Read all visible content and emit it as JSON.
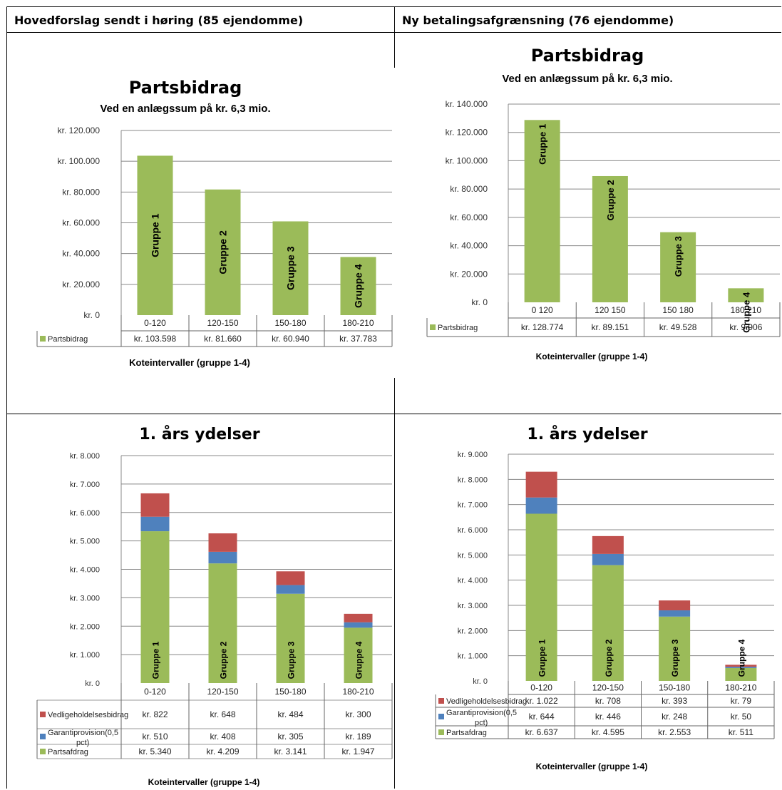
{
  "headers": {
    "left": "Hovedforslag sendt i høring (85 ejendomme)",
    "right": "Ny betalingsafgrænsning (76 ejendomme)"
  },
  "colors": {
    "partsbidrag": "#9bbb59",
    "vedligeholdelsesbidrag": "#c0504d",
    "garantiprovision": "#4f81bd",
    "gridline": "#888888"
  },
  "chart_data": [
    {
      "id": "partsbidrag-hoved",
      "type": "bar",
      "title": "Partsbidrag",
      "subtitle": "Ved en anlægssum på kr. 6,3 mio.",
      "xlabel": "Koteintervaller (gruppe 1-4)",
      "ylabel": "",
      "categories": [
        "0-120",
        "120-150",
        "150-180",
        "180-210"
      ],
      "bar_labels": [
        "Gruppe 1",
        "Gruppe 2",
        "Gruppe 3",
        "Gruppe 4"
      ],
      "series": [
        {
          "name": "Partsbidrag",
          "values": [
            103598,
            81660,
            60940,
            37783
          ],
          "display": [
            "kr. 103.598",
            "kr. 81.660",
            "kr. 60.940",
            "kr. 37.783"
          ]
        }
      ],
      "ylim": [
        0,
        120000
      ],
      "yticks": [
        0,
        20000,
        40000,
        60000,
        80000,
        100000,
        120000
      ],
      "ytick_labels": [
        "kr. 0",
        "kr. 20.000",
        "kr. 40.000",
        "kr. 60.000",
        "kr. 80.000",
        "kr. 100.000",
        "kr. 120.000"
      ],
      "grid": true,
      "legend": "data-table"
    },
    {
      "id": "partsbidrag-ny",
      "type": "bar",
      "title": "Partsbidrag",
      "subtitle": "Ved en anlægssum på kr. 6,3 mio.",
      "xlabel": "Koteintervaller (gruppe 1-4)",
      "ylabel": "",
      "categories": [
        "0 120",
        "120 150",
        "150 180",
        "180 210"
      ],
      "bar_labels": [
        "Gruppe 1",
        "Gruppe 2",
        "Gruppe 3",
        "Gruppe 4"
      ],
      "series": [
        {
          "name": "Partsbidrag",
          "values": [
            128774,
            89151,
            49528,
            9906
          ],
          "display": [
            "kr. 128.774",
            "kr. 89.151",
            "kr. 49.528",
            "kr. 9.906"
          ]
        }
      ],
      "ylim": [
        0,
        140000
      ],
      "yticks": [
        0,
        20000,
        40000,
        60000,
        80000,
        100000,
        120000,
        140000
      ],
      "ytick_labels": [
        "kr. 0",
        "kr. 20.000",
        "kr. 40.000",
        "kr. 60.000",
        "kr. 80.000",
        "kr. 100.000",
        "kr. 120.000",
        "kr. 140.000"
      ],
      "grid": true,
      "legend": "data-table"
    },
    {
      "id": "ydelser-hoved",
      "type": "bar",
      "stacked": true,
      "title": "1. års ydelser",
      "xlabel": "Koteintervaller (gruppe 1-4)",
      "ylabel": "",
      "categories": [
        "0-120",
        "120-150",
        "150-180",
        "180-210"
      ],
      "bar_labels": [
        "Gruppe 1",
        "Gruppe 2",
        "Gruppe 3",
        "Gruppe 4"
      ],
      "series": [
        {
          "name": "Vedligeholdelsesbidrag",
          "values": [
            822,
            648,
            484,
            300
          ],
          "display": [
            "kr. 822",
            "kr. 648",
            "kr. 484",
            "kr. 300"
          ]
        },
        {
          "name": "Garantiprovision(0,5 pct)",
          "values": [
            510,
            408,
            305,
            189
          ],
          "display": [
            "kr. 510",
            "kr. 408",
            "kr. 305",
            "kr. 189"
          ]
        },
        {
          "name": "Partsafdrag",
          "values": [
            5340,
            4209,
            3141,
            1947
          ],
          "display": [
            "kr. 5.340",
            "kr. 4.209",
            "kr. 3.141",
            "kr. 1.947"
          ]
        }
      ],
      "ylim": [
        0,
        8000
      ],
      "yticks": [
        0,
        1000,
        2000,
        3000,
        4000,
        5000,
        6000,
        7000,
        8000
      ],
      "ytick_labels": [
        "kr. 0",
        "kr. 1.000",
        "kr. 2.000",
        "kr. 3.000",
        "kr. 4.000",
        "kr. 5.000",
        "kr. 6.000",
        "kr. 7.000",
        "kr. 8.000"
      ],
      "grid": true,
      "legend": "data-table"
    },
    {
      "id": "ydelser-ny",
      "type": "bar",
      "stacked": true,
      "title": "1. års ydelser",
      "xlabel": "Koteintervaller (gruppe 1-4)",
      "ylabel": "",
      "categories": [
        "0-120",
        "120-150",
        "150-180",
        "180-210"
      ],
      "bar_labels": [
        "Gruppe 1",
        "Gruppe 2",
        "Gruppe 3",
        "Gruppe 4"
      ],
      "series": [
        {
          "name": "Vedligeholdelsesbidrag",
          "values": [
            1022,
            708,
            393,
            79
          ],
          "display": [
            "kr. 1.022",
            "kr. 708",
            "kr. 393",
            "kr. 79"
          ]
        },
        {
          "name": "Garantiprovision(0,5 pct)",
          "values": [
            644,
            446,
            248,
            50
          ],
          "display": [
            "kr. 644",
            "kr. 446",
            "kr. 248",
            "kr. 50"
          ]
        },
        {
          "name": "Partsafdrag",
          "values": [
            6637,
            4595,
            2553,
            511
          ],
          "display": [
            "kr. 6.637",
            "kr. 4.595",
            "kr. 2.553",
            "kr. 511"
          ]
        }
      ],
      "ylim": [
        0,
        9000
      ],
      "yticks": [
        0,
        1000,
        2000,
        3000,
        4000,
        5000,
        6000,
        7000,
        8000,
        9000
      ],
      "ytick_labels": [
        "kr. 0",
        "kr. 1.000",
        "kr. 2.000",
        "kr. 3.000",
        "kr. 4.000",
        "kr. 5.000",
        "kr. 6.000",
        "kr. 7.000",
        "kr. 8.000",
        "kr. 9.000"
      ],
      "grid": true,
      "legend": "data-table"
    }
  ]
}
